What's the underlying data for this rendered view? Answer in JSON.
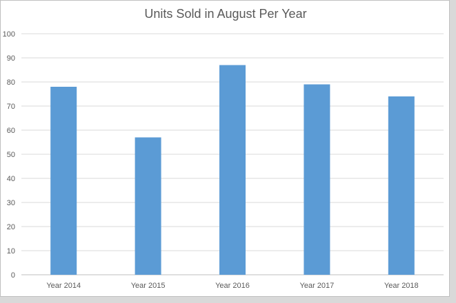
{
  "chart_data": {
    "type": "bar",
    "title": "Units Sold in August Per Year",
    "categories": [
      "Year 2014",
      "Year 2015",
      "Year 2016",
      "Year 2017",
      "Year 2018"
    ],
    "values": [
      78,
      57,
      87,
      79,
      74
    ],
    "ylim": [
      0,
      100
    ],
    "yticks": [
      "0",
      "10",
      "20",
      "30",
      "40",
      "50",
      "60",
      "70",
      "80",
      "90",
      "100"
    ],
    "xlabel": "",
    "ylabel": "",
    "grid": true,
    "legend": "none",
    "colors": {
      "bar": "#5b9bd5",
      "grid": "#d9d9d9",
      "axis": "#bfbfbf"
    }
  }
}
